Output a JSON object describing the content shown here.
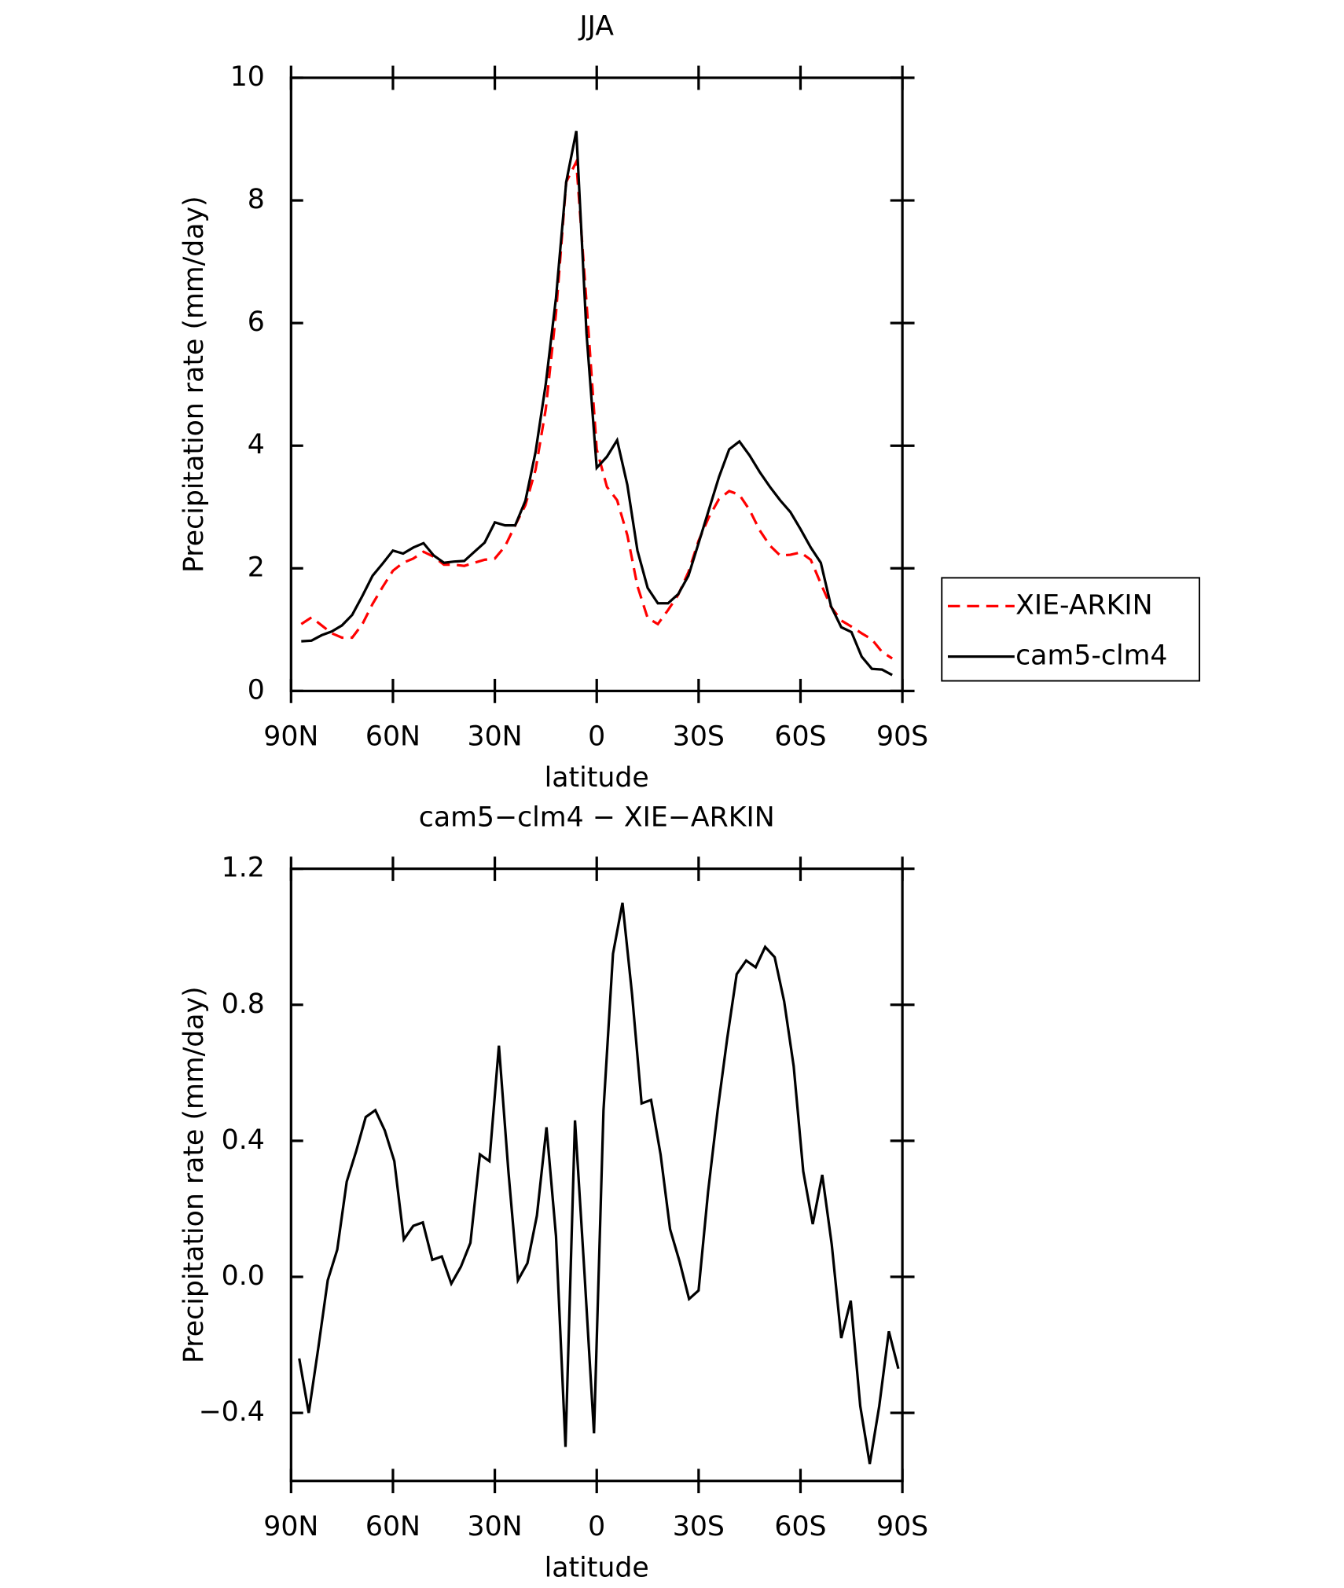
{
  "chart_data": [
    {
      "type": "line",
      "title": "JJA",
      "xlabel": "latitude",
      "ylabel": "Precipitation rate (mm/day)",
      "x": [
        87,
        84,
        81,
        78,
        75,
        72,
        69,
        66,
        63,
        60,
        57,
        54,
        51,
        48,
        45,
        42,
        39,
        36,
        33,
        30,
        27,
        24,
        21,
        18,
        15,
        12,
        9,
        6,
        3,
        0,
        -3,
        -6,
        -9,
        -12,
        -15,
        -18,
        -21,
        -24,
        -27,
        -30,
        -33,
        -36,
        -39,
        -42,
        -45,
        -48,
        -51,
        -54,
        -57,
        -60,
        -63,
        -66,
        -69,
        -72,
        -75,
        -78,
        -81,
        -84,
        -87
      ],
      "series": [
        {
          "name": "XIE-ARKIN",
          "color": "#ff0000",
          "linestyle": "dashed",
          "values": [
            1.09,
            1.2,
            1.07,
            0.94,
            0.87,
            0.87,
            1.09,
            1.42,
            1.7,
            1.96,
            2.09,
            2.16,
            2.27,
            2.19,
            2.06,
            2.06,
            2.04,
            2.09,
            2.14,
            2.16,
            2.36,
            2.7,
            3.03,
            3.61,
            4.6,
            6.16,
            8.3,
            8.63,
            6.33,
            3.94,
            3.33,
            3.11,
            2.54,
            1.71,
            1.19,
            1.09,
            1.32,
            1.57,
            1.94,
            2.45,
            2.83,
            3.13,
            3.26,
            3.2,
            2.95,
            2.62,
            2.37,
            2.21,
            2.22,
            2.26,
            2.14,
            1.75,
            1.37,
            1.15,
            1.05,
            0.94,
            0.84,
            0.64,
            0.53
          ]
        },
        {
          "name": "cam5-clm4",
          "color": "#000000",
          "linestyle": "solid",
          "values": [
            0.81,
            0.82,
            0.91,
            0.97,
            1.07,
            1.24,
            1.55,
            1.88,
            2.08,
            2.29,
            2.24,
            2.34,
            2.41,
            2.21,
            2.09,
            2.11,
            2.12,
            2.27,
            2.42,
            2.75,
            2.7,
            2.7,
            3.1,
            3.9,
            5.01,
            6.41,
            8.3,
            9.13,
            5.83,
            3.64,
            3.82,
            4.09,
            3.36,
            2.29,
            1.68,
            1.43,
            1.43,
            1.58,
            1.88,
            2.41,
            2.95,
            3.49,
            3.94,
            4.07,
            3.84,
            3.57,
            3.33,
            3.11,
            2.92,
            2.64,
            2.34,
            2.09,
            1.38,
            1.04,
            0.96,
            0.56,
            0.36,
            0.35,
            0.26
          ]
        }
      ],
      "xlim": [
        90,
        -90
      ],
      "xticks": [
        {
          "value": 90,
          "label": "90N"
        },
        {
          "value": 60,
          "label": "60N"
        },
        {
          "value": 30,
          "label": "30N"
        },
        0,
        {
          "value": -30,
          "label": "30S"
        },
        {
          "value": -60,
          "label": "60S"
        },
        {
          "value": -90,
          "label": "90S"
        }
      ],
      "ylim": [
        0,
        10
      ],
      "yticks": [
        0,
        2,
        4,
        6,
        8,
        10
      ],
      "legend": "outside-right"
    },
    {
      "type": "line",
      "title": "cam5−clm4 − XIE−ARKIN",
      "xlabel": "latitude",
      "ylabel": "Precipitation rate (mm/day)",
      "x": [
        87.6,
        84.8,
        82.0,
        79.2,
        76.4,
        73.6,
        70.8,
        68.0,
        65.2,
        62.4,
        59.6,
        56.8,
        54.0,
        51.2,
        48.4,
        45.6,
        42.8,
        40.0,
        37.2,
        34.4,
        31.6,
        28.8,
        26.0,
        23.2,
        20.4,
        17.6,
        14.8,
        12.0,
        9.2,
        6.4,
        3.6,
        0.8,
        -2.0,
        -4.8,
        -7.6,
        -10.4,
        -13.2,
        -16.0,
        -18.8,
        -21.6,
        -24.4,
        -27.2,
        -30.0,
        -32.8,
        -35.6,
        -38.4,
        -41.2,
        -44.0,
        -46.8,
        -49.6,
        -52.4,
        -55.2,
        -58.0,
        -60.8,
        -63.6,
        -66.4,
        -69.2,
        -72.0,
        -74.8,
        -77.6,
        -80.4,
        -83.2,
        -86.0,
        -88.8
      ],
      "series": [
        {
          "color": "#000000",
          "linestyle": "solid",
          "values": [
            -0.24,
            -0.4,
            -0.21,
            -0.01,
            0.08,
            0.28,
            0.37,
            0.47,
            0.49,
            0.43,
            0.34,
            0.11,
            0.15,
            0.16,
            0.05,
            0.06,
            -0.02,
            0.03,
            0.1,
            0.36,
            0.34,
            0.68,
            0.31,
            -0.01,
            0.04,
            0.18,
            0.44,
            0.12,
            -0.5,
            0.46,
            0.01,
            -0.46,
            0.49,
            0.95,
            1.1,
            0.83,
            0.51,
            0.52,
            0.36,
            0.14,
            0.045,
            -0.065,
            -0.04,
            0.25,
            0.49,
            0.7,
            0.89,
            0.93,
            0.91,
            0.97,
            0.94,
            0.81,
            0.62,
            0.31,
            0.155,
            0.3,
            0.095,
            -0.18,
            -0.07,
            -0.38,
            -0.55,
            -0.38,
            -0.16,
            -0.27
          ]
        }
      ],
      "xlim": [
        90,
        -90
      ],
      "xticks": [
        {
          "value": 90,
          "label": "90N"
        },
        {
          "value": 60,
          "label": "60N"
        },
        {
          "value": 30,
          "label": "30N"
        },
        0,
        {
          "value": -30,
          "label": "30S"
        },
        {
          "value": -60,
          "label": "60S"
        },
        {
          "value": -90,
          "label": "90S"
        }
      ],
      "ylim": [
        -0.6,
        1.2
      ],
      "yticks": [
        {
          "value": -0.4,
          "label": "−0.4"
        },
        {
          "value": 0,
          "label": "0.0"
        },
        0.4,
        0.8,
        1.2
      ]
    }
  ]
}
